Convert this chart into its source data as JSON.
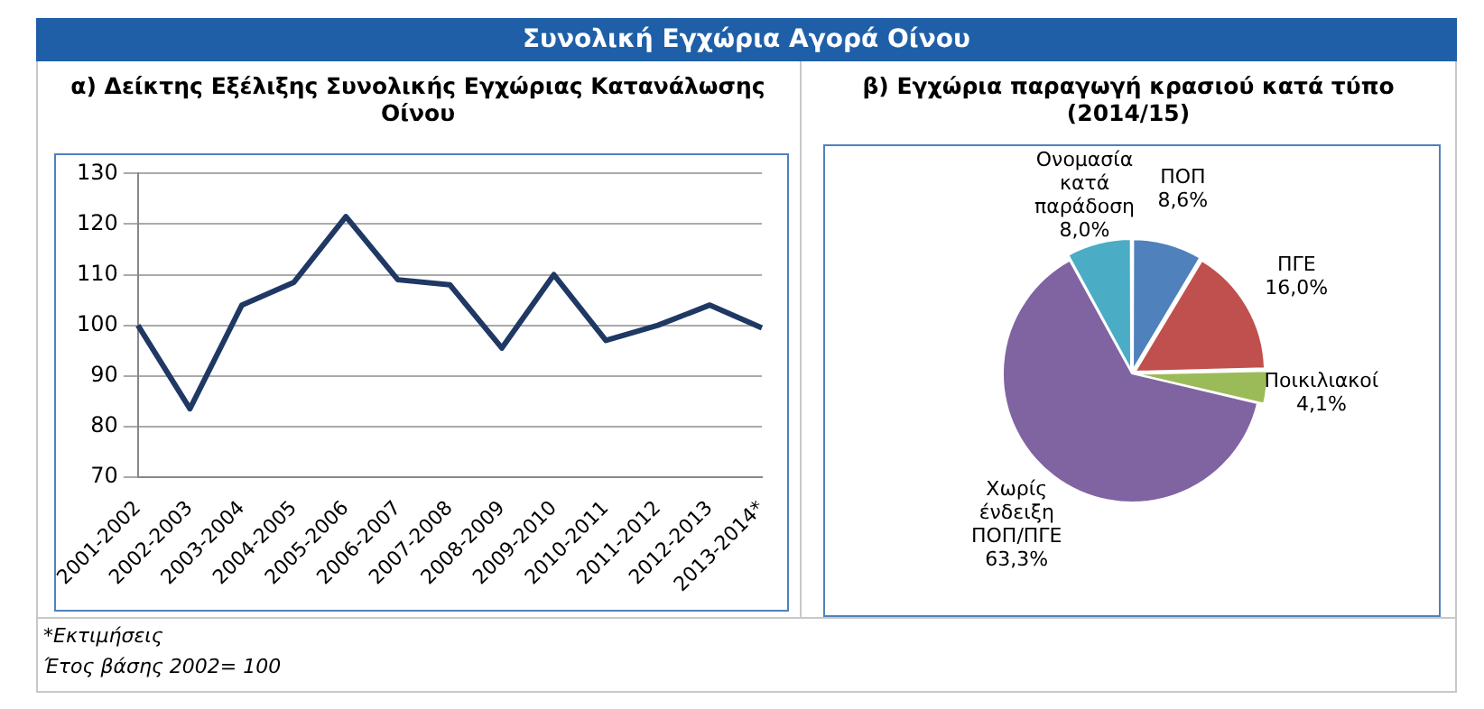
{
  "chart_data": [
    {
      "type": "line",
      "title": "Συνολική Εγχώρια Αγορά Οίνου",
      "subtitle": "α) Δείκτης Εξέλιξης Συνολικής Εγχώριας Κατανάλωσης Οίνου",
      "categories": [
        "2001-2002",
        "2002-2003",
        "2003-2004",
        "2004-2005",
        "2005-2006",
        "2006-2007",
        "2007-2008",
        "2008-2009",
        "2009-2010",
        "2010-2011",
        "2011-2012",
        "2012-2013",
        "2013-2014*"
      ],
      "values": [
        100,
        83.5,
        104,
        108.5,
        121.5,
        109,
        108,
        95.5,
        110,
        97,
        100,
        104,
        99.5
      ],
      "color": "#1f3864",
      "ylim": [
        70,
        130
      ],
      "yticks": [
        70,
        80,
        90,
        100,
        110,
        120,
        130
      ],
      "grid": "y",
      "annotations": [
        "*Εκτιμήσεις",
        "Έτος βάσης 2002= 100"
      ]
    },
    {
      "type": "pie",
      "title": "β)  Εγχώρια παραγωγή κρασιού κατά τύπο  (2014/15)",
      "categories": [
        "ΠΟΠ",
        "ΠΓΕ",
        "Ποικιλιακοί",
        "Χωρίς ένδειξη ΠΟΠ/ΠΓΕ",
        "Ονομασία κατά παράδοση"
      ],
      "values": [
        8.6,
        16.0,
        4.1,
        63.3,
        8.0
      ],
      "colors": [
        "#4f81bd",
        "#c0504d",
        "#9bbb59",
        "#8064a2",
        "#4bacc6"
      ],
      "value_labels": [
        "8,6%",
        "16,0%",
        "4,1%",
        "63,3%",
        "8,0%"
      ]
    }
  ]
}
